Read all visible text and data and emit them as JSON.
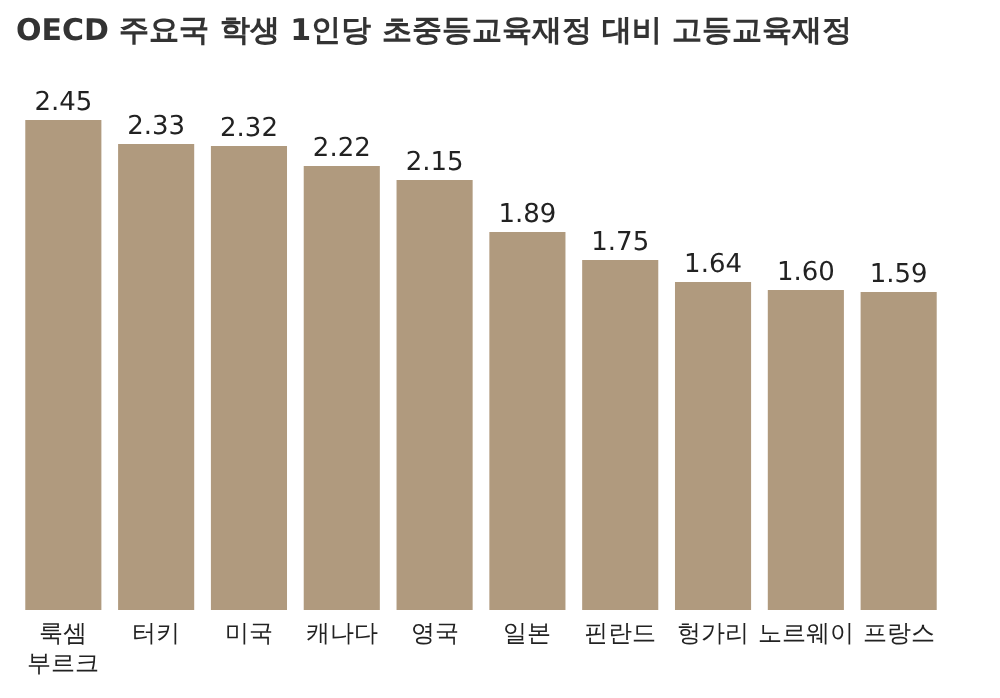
{
  "chart_data": {
    "type": "bar",
    "title": "OECD 주요국 학생 1인당 초중등교육재정 대비 고등교육재정",
    "categories": [
      "룩셈\n부르크",
      "터키",
      "미국",
      "캐나다",
      "영국",
      "일본",
      "핀란드",
      "헝가리",
      "노르웨이",
      "프랑스"
    ],
    "values": [
      2.45,
      2.33,
      2.32,
      2.22,
      2.15,
      1.89,
      1.75,
      1.64,
      1.6,
      1.59
    ],
    "value_labels": [
      "2.45",
      "2.33",
      "2.32",
      "2.22",
      "2.15",
      "1.89",
      "1.75",
      "1.64",
      "1.60",
      "1.59"
    ],
    "color": "#b09a7e"
  }
}
